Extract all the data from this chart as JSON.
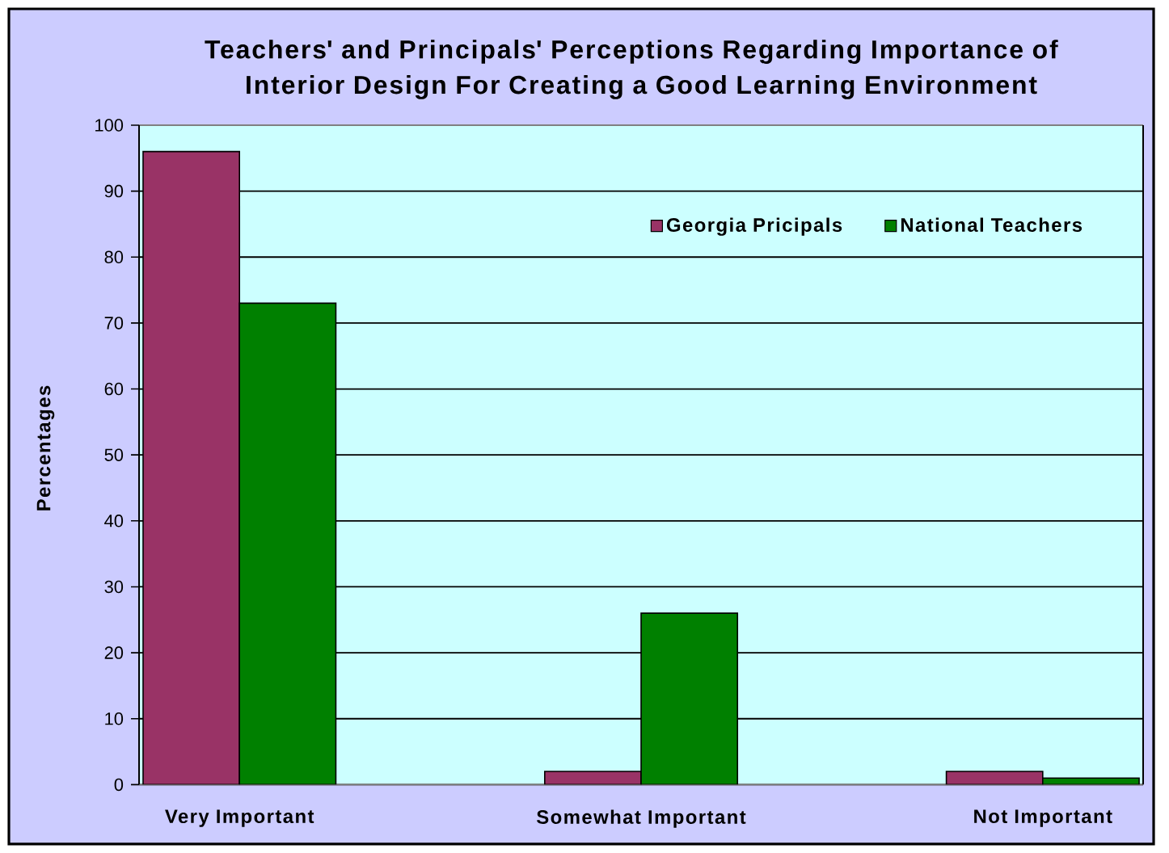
{
  "chart_data": {
    "type": "bar",
    "title": "Teachers' and Principals' Perceptions Regarding Importance of Interior Design For Creating a Good Learning Environment",
    "ylabel": "Percentages",
    "categories": [
      "Very Important",
      "Somewhat Important",
      "Not Important"
    ],
    "series": [
      {
        "name": "Georgia Pricipals",
        "color": "#993366",
        "values": [
          96,
          2,
          2
        ]
      },
      {
        "name": "National Teachers",
        "color": "#008000",
        "values": [
          73,
          26,
          1
        ]
      }
    ],
    "ylim": [
      0,
      100
    ],
    "yticks": [
      0,
      10,
      20,
      30,
      40,
      50,
      60,
      70,
      80,
      90,
      100
    ],
    "grid": "y",
    "legend": "top right"
  }
}
